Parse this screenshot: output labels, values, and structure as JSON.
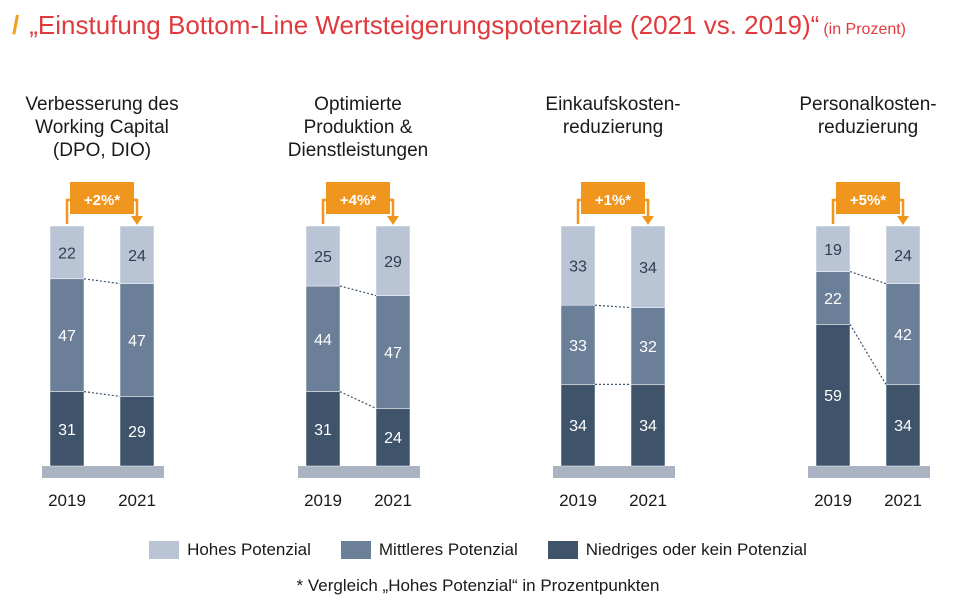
{
  "title": {
    "slash": "/",
    "main": "„Einstufung Bottom-Line Wertsteigerungspotenziale (2021 vs. 2019)“",
    "unit": "(in Prozent)"
  },
  "colors": {
    "hohes": "#b9c4d4",
    "mittleres": "#6b7f98",
    "niedriges": "#3f536b",
    "accent": "#f0951d",
    "baseline": "#a9b3c1",
    "title": "#e03a3e"
  },
  "legend": [
    {
      "label": "Hohes Potenzial",
      "color": "#b9c4d4"
    },
    {
      "label": "Mittleres Potenzial",
      "color": "#6b7f98"
    },
    {
      "label": "Niedriges oder kein Potenzial",
      "color": "#3f536b"
    }
  ],
  "footnote": "* Vergleich „Hohes Potenzial“ in Prozentpunkten",
  "chart_data": {
    "type": "bar",
    "stacked": true,
    "panels": [
      {
        "title_lines": [
          "Verbesserung des",
          "Working Capital",
          "(DPO, DIO)"
        ],
        "change_label": "+2%*",
        "categories": [
          "2019",
          "2021"
        ],
        "series": [
          {
            "name": "Niedriges oder kein Potenzial",
            "values": [
              31,
              29
            ]
          },
          {
            "name": "Mittleres Potenzial",
            "values": [
              47,
              47
            ]
          },
          {
            "name": "Hohes Potenzial",
            "values": [
              22,
              24
            ]
          }
        ]
      },
      {
        "title_lines": [
          "Optimierte",
          "Produktion &",
          "Dienstleistungen"
        ],
        "change_label": "+4%*",
        "categories": [
          "2019",
          "2021"
        ],
        "series": [
          {
            "name": "Niedriges oder kein Potenzial",
            "values": [
              31,
              24
            ]
          },
          {
            "name": "Mittleres Potenzial",
            "values": [
              44,
              47
            ]
          },
          {
            "name": "Hohes Potenzial",
            "values": [
              25,
              29
            ]
          }
        ]
      },
      {
        "title_lines": [
          "Einkaufskosten-",
          "reduzierung"
        ],
        "change_label": "+1%*",
        "categories": [
          "2019",
          "2021"
        ],
        "series": [
          {
            "name": "Niedriges oder kein Potenzial",
            "values": [
              34,
              34
            ]
          },
          {
            "name": "Mittleres Potenzial",
            "values": [
              33,
              32
            ]
          },
          {
            "name": "Hohes Potenzial",
            "values": [
              33,
              34
            ]
          }
        ]
      },
      {
        "title_lines": [
          "Personalkosten-",
          "reduzierung"
        ],
        "change_label": "+5%*",
        "categories": [
          "2019",
          "2021"
        ],
        "series": [
          {
            "name": "Niedriges oder kein Potenzial",
            "values": [
              59,
              34
            ]
          },
          {
            "name": "Mittleres Potenzial",
            "values": [
              22,
              42
            ]
          },
          {
            "name": "Hohes Potenzial",
            "values": [
              19,
              24
            ]
          }
        ]
      }
    ]
  }
}
